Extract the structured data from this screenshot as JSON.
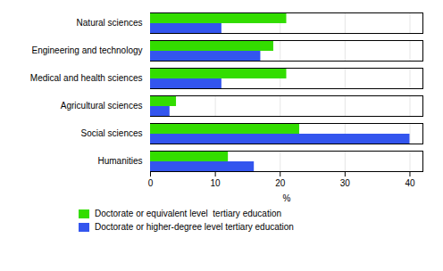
{
  "chart_data": {
    "type": "bar",
    "orientation": "horizontal",
    "categories": [
      "Natural sciences",
      "Engineering and technology",
      "Medical and health sciences",
      "Agricultural sciences",
      "Social sciences",
      "Humanities"
    ],
    "series": [
      {
        "name": "Doctorate or equivalent level  tertiary education",
        "color": "#33dd00",
        "values": [
          21,
          19,
          21,
          4,
          23,
          12
        ]
      },
      {
        "name": "Doctorate or higher-degree level tertiary education",
        "color": "#3355ee",
        "values": [
          11,
          17,
          11,
          3,
          40,
          16
        ]
      }
    ],
    "xlabel": "%",
    "xlim": [
      0,
      42
    ],
    "xticks": [
      0,
      10,
      20,
      30,
      40
    ],
    "grid": true,
    "legend": "lower left"
  }
}
